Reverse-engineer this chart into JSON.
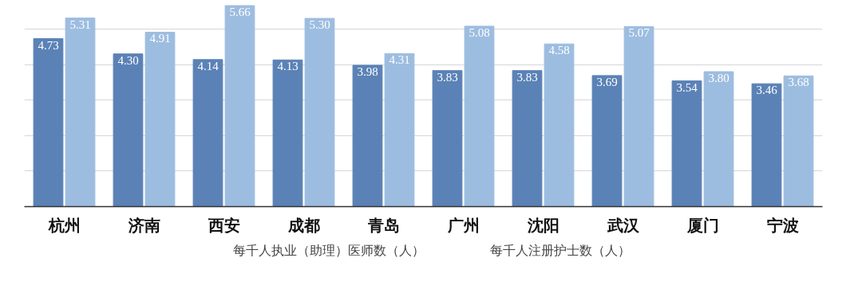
{
  "chart_data": {
    "type": "bar",
    "categories": [
      "杭州",
      "济南",
      "西安",
      "成都",
      "青岛",
      "广州",
      "沈阳",
      "武汉",
      "厦门",
      "宁波"
    ],
    "series": [
      {
        "name": "每千人执业（助理）医师数（人）",
        "color": "#5b82b6",
        "values": [
          4.73,
          4.3,
          4.14,
          4.13,
          3.98,
          3.83,
          3.83,
          3.69,
          3.54,
          3.46
        ],
        "value_labels": [
          "4.73",
          "4.30",
          "4.14",
          "4.13",
          "3.98",
          "3.83",
          "3.83",
          "3.69",
          "3.54",
          "3.46"
        ]
      },
      {
        "name": "每千人注册护士数（人）",
        "color": "#9dbde0",
        "values": [
          5.31,
          4.91,
          5.66,
          5.3,
          4.31,
          5.08,
          4.58,
          5.07,
          3.8,
          3.68
        ],
        "value_labels": [
          "5.31",
          "4.91",
          "5.66",
          "5.30",
          "4.31",
          "5.08",
          "4.58",
          "5.07",
          "3.80",
          "3.68"
        ]
      }
    ],
    "grid": "y",
    "legend": "bottom",
    "tick_labels": "x"
  }
}
